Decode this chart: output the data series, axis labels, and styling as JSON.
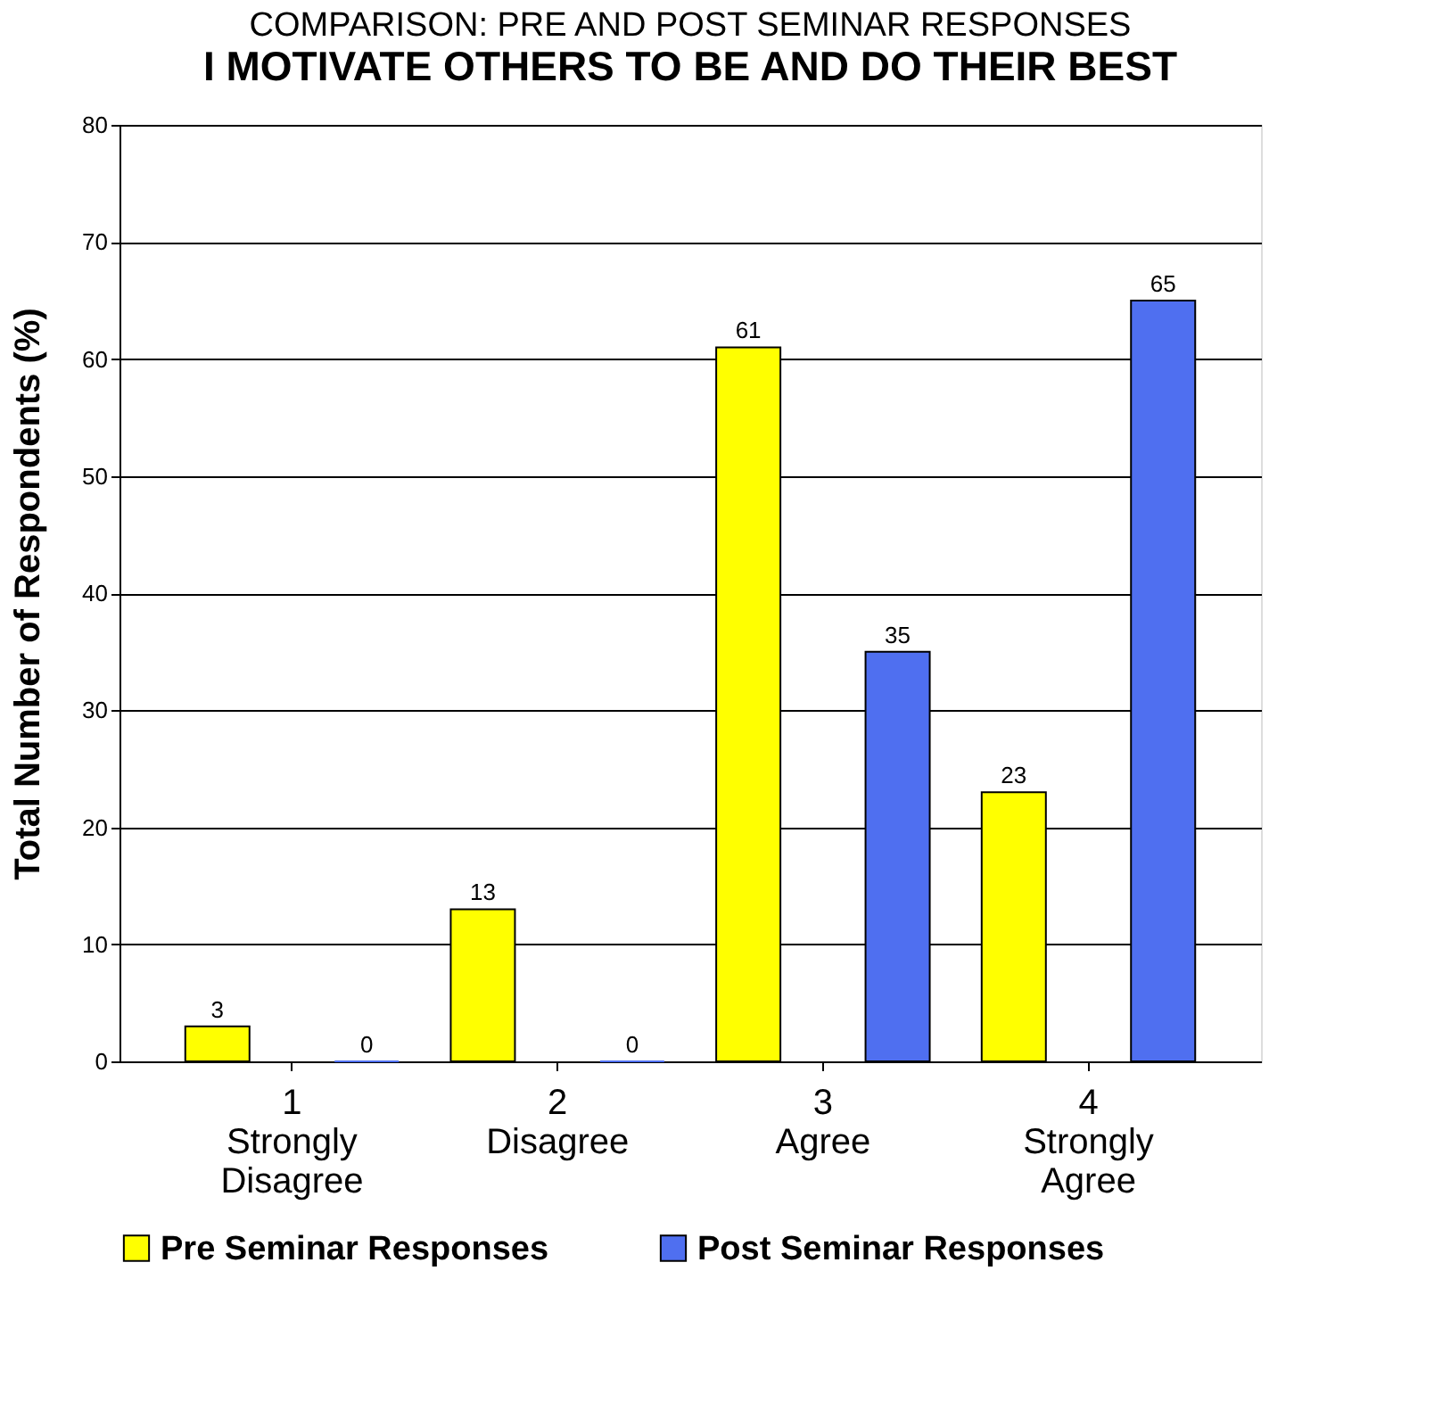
{
  "chart_data": {
    "type": "bar",
    "title": "I MOTIVATE OTHERS TO BE AND DO THEIR BEST",
    "subtitle": "COMPARISON: PRE AND POST SEMINAR RESPONSES",
    "ylabel": "Total Number of Respondents (%)",
    "categories": [
      "1\nStrongly\nDisagree",
      "2\nDisagree",
      "3\nAgree",
      "4\nStrongly\nAgree"
    ],
    "series": [
      {
        "name": "Pre Seminar Responses",
        "color": "#ffff00",
        "values": [
          3,
          13,
          61,
          23
        ]
      },
      {
        "name": "Post Seminar Responses",
        "color": "#4f6ff0",
        "values": [
          0,
          0,
          35,
          65
        ]
      }
    ],
    "ylim": [
      0,
      80
    ],
    "yticks": [
      0,
      10,
      20,
      30,
      40,
      50,
      60,
      70,
      80
    ],
    "grid": "y",
    "legend": "bottom",
    "data_labels": true
  }
}
